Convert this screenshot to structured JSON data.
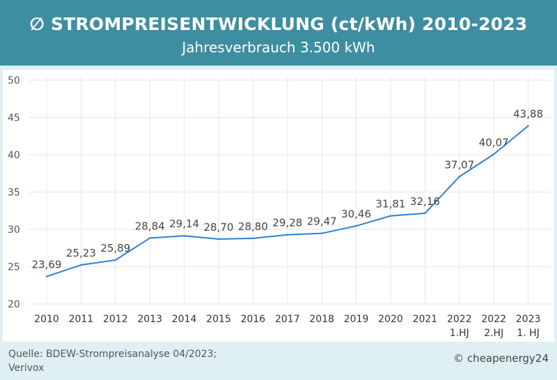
{
  "header": {
    "title": "∅ STROMPREISENTWICKLUNG (ct/kWh) 2010-2023",
    "subtitle": "Jahresverbrauch 3.500 kWh"
  },
  "footer": {
    "source_line1": "Quelle: BDEW-Strompreisanalyse 04/2023;",
    "source_line2": "Verivox",
    "copyright": "© cheapenergy24"
  },
  "colors": {
    "header_bg": "#3e8ea1",
    "line": "#2f7fd0",
    "grid": "#e6e6e6",
    "text": "#555555"
  },
  "chart_data": {
    "type": "line",
    "title": "∅ STROMPREISENTWICKLUNG (ct/kWh) 2010-2023",
    "subtitle": "Jahresverbrauch 3.500 kWh",
    "xlabel": "",
    "ylabel": "",
    "ylim": [
      20,
      50
    ],
    "yticks": [
      "20",
      "25",
      "30",
      "35",
      "40",
      "45",
      "50"
    ],
    "grid": true,
    "categories": [
      [
        "2010"
      ],
      [
        "2011"
      ],
      [
        "2012"
      ],
      [
        "2013"
      ],
      [
        "2014"
      ],
      [
        "2015"
      ],
      [
        "2016"
      ],
      [
        "2017"
      ],
      [
        "2018"
      ],
      [
        "2019"
      ],
      [
        "2020"
      ],
      [
        "2021"
      ],
      [
        "2022",
        "1.HJ"
      ],
      [
        "2022",
        "2.HJ"
      ],
      [
        "2023",
        "1. HJ"
      ]
    ],
    "values": [
      23.69,
      25.23,
      25.89,
      28.84,
      29.14,
      28.7,
      28.8,
      29.28,
      29.47,
      30.46,
      31.81,
      32.16,
      37.07,
      40.07,
      43.88
    ],
    "value_labels": [
      "23,69",
      "25,23",
      "25,89",
      "28,84",
      "29,14",
      "28,70",
      "28,80",
      "29,28",
      "29,47",
      "30,46",
      "31,81",
      "32,16",
      "37,07",
      "40,07",
      "43,88"
    ]
  }
}
